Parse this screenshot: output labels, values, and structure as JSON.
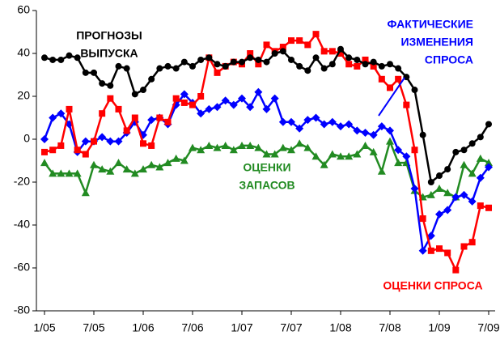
{
  "chart_data": {
    "type": "line",
    "categories": [
      "1/05",
      null,
      null,
      null,
      null,
      null,
      "7/05",
      null,
      null,
      null,
      null,
      null,
      "1/06",
      null,
      null,
      null,
      null,
      null,
      "7/06",
      null,
      null,
      null,
      null,
      null,
      "1/07",
      null,
      null,
      null,
      null,
      null,
      "7/07",
      null,
      null,
      null,
      null,
      null,
      "1/08",
      null,
      null,
      null,
      null,
      null,
      "7/08",
      null,
      null,
      null,
      null,
      null,
      "1/09",
      null,
      null,
      null,
      null,
      null,
      "7/09"
    ],
    "ylim": [
      -80,
      60
    ],
    "yticks": [
      -80,
      -60,
      -40,
      -20,
      0,
      20,
      40,
      60
    ],
    "series": [
      {
        "name": "ПРОГНОЗЫ ВЫПУСКА",
        "color": "#000000",
        "marker": "circle",
        "values": [
          38,
          37,
          37,
          39,
          38,
          31,
          31,
          26,
          25,
          34,
          33,
          21,
          23,
          28,
          33,
          34,
          33,
          36,
          34,
          37,
          38,
          35,
          34,
          36,
          36,
          38,
          37,
          36,
          40,
          41,
          37,
          34,
          32,
          38,
          33,
          35,
          42,
          38,
          37,
          35,
          36,
          34,
          35,
          33,
          29,
          23,
          2,
          -20,
          -17,
          -14,
          -6,
          -5,
          -2,
          1,
          7
        ]
      },
      {
        "name": "ОЦЕНКИ СПРОСА",
        "color": "#ff0000",
        "marker": "square",
        "values": [
          -6,
          -5,
          -3,
          14,
          -5,
          -7,
          -1,
          12,
          19,
          14,
          4,
          10,
          -2,
          -3,
          10,
          8,
          19,
          17,
          16,
          20,
          38,
          31,
          34,
          36,
          35,
          40,
          35,
          44,
          41,
          43,
          46,
          46,
          44,
          49,
          41,
          41,
          40,
          35,
          34,
          37,
          34,
          28,
          24,
          28,
          16,
          -5,
          -37,
          -52,
          -51,
          -53,
          -61,
          -50,
          -48,
          -31,
          -32
        ]
      },
      {
        "name": "ФАКТИЧЕСКИЕ ИЗМЕНЕНИЯ СПРОСА",
        "color": "#0000ff",
        "marker": "diamond",
        "values": [
          0,
          10,
          12,
          7,
          -6,
          -1,
          -1,
          1,
          -1,
          -1,
          3,
          8,
          2,
          9,
          10,
          7,
          16,
          21,
          17,
          12,
          14,
          15,
          18,
          16,
          19,
          15,
          22,
          14,
          19,
          8,
          8,
          5,
          9,
          10,
          7,
          8,
          6,
          7,
          4,
          3,
          2,
          6,
          4,
          -5,
          -8,
          -23,
          -52,
          -45,
          -35,
          -33,
          -27,
          -26,
          -29,
          -18,
          -13
        ]
      },
      {
        "name": "ОЦЕНКИ ЗАПАСОВ",
        "color": "#228b22",
        "marker": "triangle",
        "values": [
          -11,
          -16,
          -16,
          -16,
          -16,
          -25,
          -12,
          -14,
          -15,
          -11,
          -14,
          -16,
          -14,
          -12,
          -13,
          -11,
          -9,
          -10,
          -4,
          -5,
          -3,
          -4,
          -3,
          -5,
          -3,
          -3,
          -4,
          -7,
          -7,
          -4,
          -5,
          -2,
          -4,
          -8,
          -12,
          -7,
          -8,
          -8,
          -7,
          -3,
          -6,
          -15,
          -1,
          -11,
          -11,
          -24,
          -27,
          -26,
          -23,
          -25,
          -27,
          -12,
          -16,
          -9,
          -11
        ]
      }
    ],
    "annotations": [
      {
        "lines": [
          "ПРОГНОЗЫ",
          "ВЫПУСКА"
        ],
        "color": "#000000"
      },
      {
        "lines": [
          "ФАКТИЧЕСКИЕ",
          "ИЗМЕНЕНИЯ",
          "СПРОСА"
        ],
        "color": "#0000ff"
      },
      {
        "lines": [
          "ОЦЕНКИ",
          "ЗАПАСОВ"
        ],
        "color": "#228b22"
      },
      {
        "lines": [
          "ОЦЕНКИ СПРОСА"
        ],
        "color": "#ff0000"
      }
    ]
  }
}
